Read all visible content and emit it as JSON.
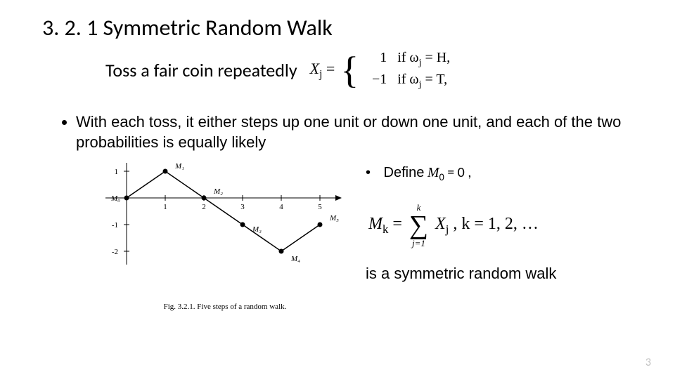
{
  "title": "3. 2. 1 Symmetric Random Walk",
  "subtitle": "Toss a fair coin repeatedly",
  "xj": {
    "lhs_var": "X",
    "lhs_sub": "j",
    "case1_val": "1",
    "case1_cond": "if ω",
    "case1_condsub": "j",
    "case1_tail": " = H,",
    "case2_val": "−1",
    "case2_cond": "if ω",
    "case2_condsub": "j",
    "case2_tail": " = T,"
  },
  "bullet1": "With each toss, it either steps up one unit or down one unit, and each of the two probabilities is equally likely",
  "define": {
    "label": "Define",
    "mvar": "M",
    "msub": "0",
    "tail": " = 0 ,"
  },
  "mk": {
    "lhs_var": "M",
    "lhs_sub": "k",
    "sigma_top": "k",
    "sigma_bot": "j=1",
    "term_var": "X",
    "term_sub": "j",
    "tail": ",  k = 1, 2, …"
  },
  "conclusion": "is a symmetric random walk",
  "figure": {
    "caption": "Fig. 3.2.1. Five steps of a random walk.",
    "x_ticks": [
      1,
      2,
      3,
      4,
      5
    ],
    "y_ticks": [
      1,
      -1,
      -2
    ],
    "y_values": [
      0,
      1,
      0,
      -1,
      -2,
      -1
    ],
    "point_labels": [
      "M₀",
      "M₁",
      "M₂",
      "M₃",
      "M₄",
      "M₅"
    ],
    "line_color": "#000000",
    "point_color": "#000000",
    "axis_color": "#000000",
    "label_font_size": 11
  },
  "page_number": "3",
  "colors": {
    "text": "#000000",
    "page_num": "#bfbfbf",
    "bg": "#ffffff"
  }
}
